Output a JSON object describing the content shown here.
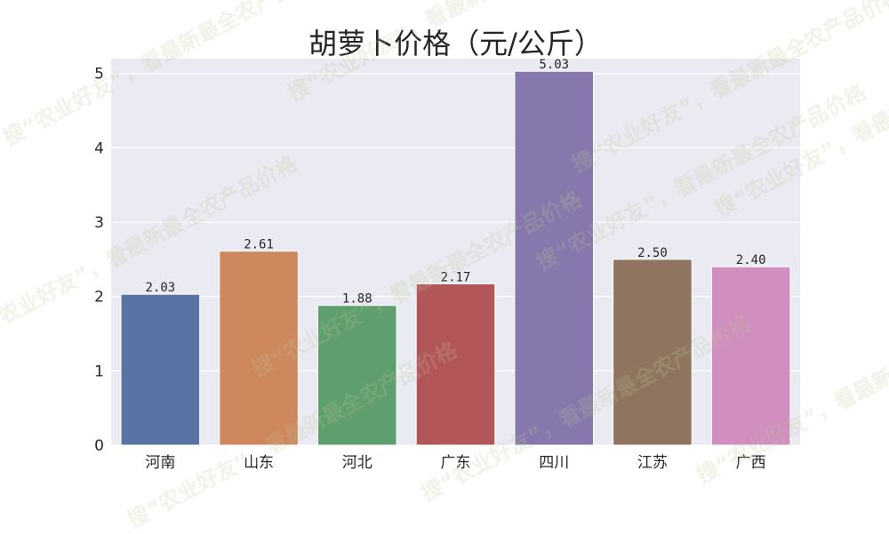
{
  "watermark_text": "搜“农业好友”，看最新最全农产品价格",
  "chart_data": {
    "type": "bar",
    "title": "胡萝卜价格（元/公斤）",
    "xlabel": "",
    "ylabel": "",
    "categories": [
      "河南",
      "山东",
      "河北",
      "广东",
      "四川",
      "江苏",
      "广西"
    ],
    "values": [
      2.03,
      2.61,
      1.88,
      2.17,
      5.03,
      2.5,
      2.4
    ],
    "value_labels": [
      "2.03",
      "2.61",
      "1.88",
      "2.17",
      "5.03",
      "2.50",
      "2.40"
    ],
    "colors": [
      "#5874a4",
      "#cf875e",
      "#5f9e6e",
      "#b35659",
      "#8678ac",
      "#8f7560",
      "#d08fbf"
    ],
    "ylim": [
      0,
      5.2
    ],
    "yticks": [
      "0",
      "1",
      "2",
      "3",
      "4",
      "5"
    ],
    "grid": true,
    "background": "#eaeaf2"
  }
}
